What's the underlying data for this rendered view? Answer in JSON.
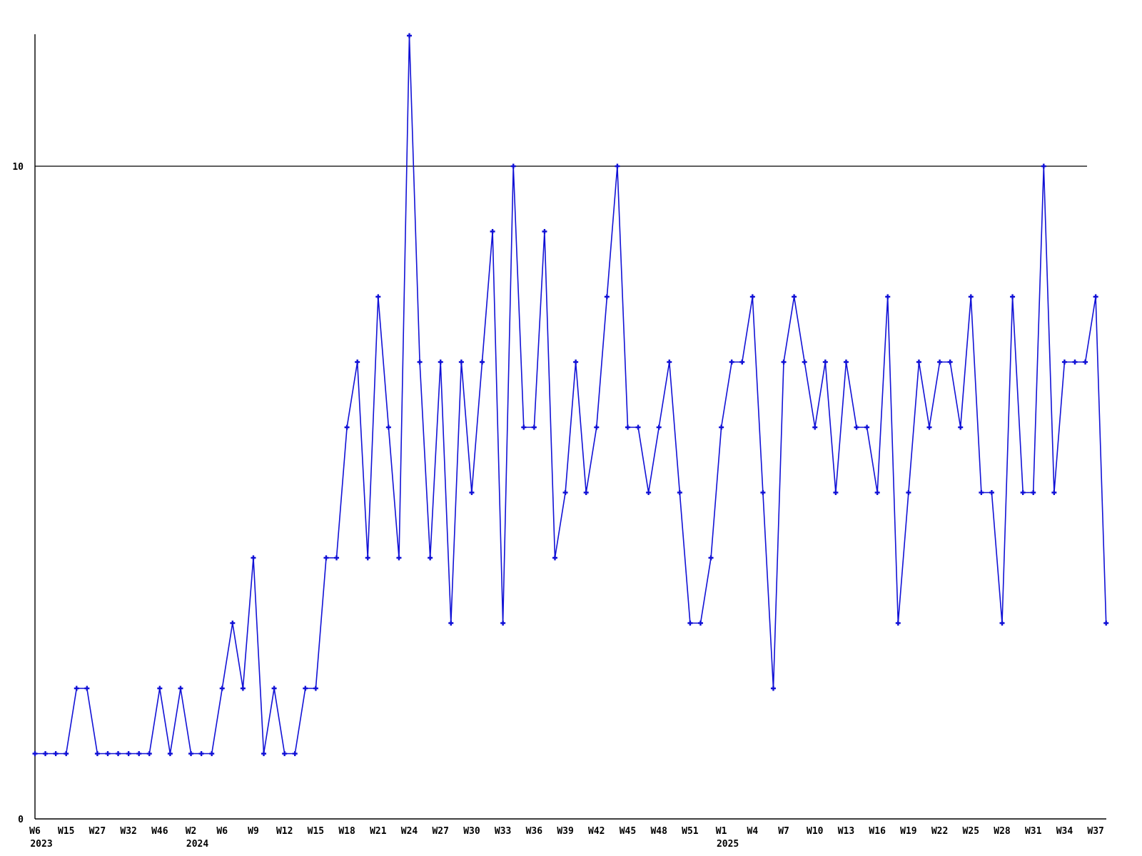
{
  "chart_data": {
    "type": "line",
    "title": "",
    "xlabel": "",
    "ylabel": "",
    "background": "#ffffff",
    "axis_color": "#000000",
    "series_color": "#1111d6",
    "marker": "plus",
    "grid": "single horizontal reference line at y=10",
    "legend_position": "none",
    "y_axis": {
      "range": [
        0,
        12.3
      ],
      "tick_labels": [
        "0",
        "10"
      ],
      "tick_values": [
        0,
        10
      ]
    },
    "x_axis": {
      "description": "weekly points; one tick label every 3 points",
      "tick_every_n_points": 3,
      "ticks": [
        {
          "week": "W6",
          "year": "2023"
        },
        {
          "week": "W15"
        },
        {
          "week": "W27"
        },
        {
          "week": "W32"
        },
        {
          "week": "W46"
        },
        {
          "week": "W2",
          "year": "2024"
        },
        {
          "week": "W6"
        },
        {
          "week": "W9"
        },
        {
          "week": "W12"
        },
        {
          "week": "W15"
        },
        {
          "week": "W18"
        },
        {
          "week": "W21"
        },
        {
          "week": "W24"
        },
        {
          "week": "W27"
        },
        {
          "week": "W30"
        },
        {
          "week": "W33"
        },
        {
          "week": "W36"
        },
        {
          "week": "W39"
        },
        {
          "week": "W42"
        },
        {
          "week": "W45"
        },
        {
          "week": "W48"
        },
        {
          "week": "W51"
        },
        {
          "week": "W1",
          "year": "2025"
        },
        {
          "week": "W4"
        },
        {
          "week": "W7"
        },
        {
          "week": "W10"
        },
        {
          "week": "W13"
        },
        {
          "week": "W16"
        },
        {
          "week": "W19"
        },
        {
          "week": "W22"
        },
        {
          "week": "W25"
        },
        {
          "week": "W28"
        },
        {
          "week": "W31"
        },
        {
          "week": "W34"
        },
        {
          "week": "W37"
        }
      ]
    },
    "values": [
      1,
      1,
      1,
      1,
      2,
      2,
      1,
      1,
      1,
      1,
      1,
      1,
      2,
      1,
      2,
      1,
      1,
      1,
      2,
      3,
      2,
      4,
      1,
      2,
      1,
      1,
      2,
      2,
      4,
      4,
      6,
      7,
      4,
      8,
      6,
      4,
      12,
      7,
      4,
      7,
      3,
      7,
      5,
      7,
      9,
      3,
      10,
      6,
      6,
      9,
      4,
      5,
      7,
      5,
      6,
      8,
      10,
      6,
      6,
      5,
      6,
      7,
      5,
      3,
      3,
      4,
      6,
      7,
      7,
      8,
      5,
      2,
      7,
      8,
      7,
      6,
      7,
      5,
      7,
      6,
      6,
      5,
      8,
      3,
      5,
      7,
      6,
      7,
      7,
      6,
      8,
      5,
      5,
      3,
      8,
      5,
      5,
      10,
      5,
      7,
      7,
      7,
      8,
      3
    ]
  }
}
